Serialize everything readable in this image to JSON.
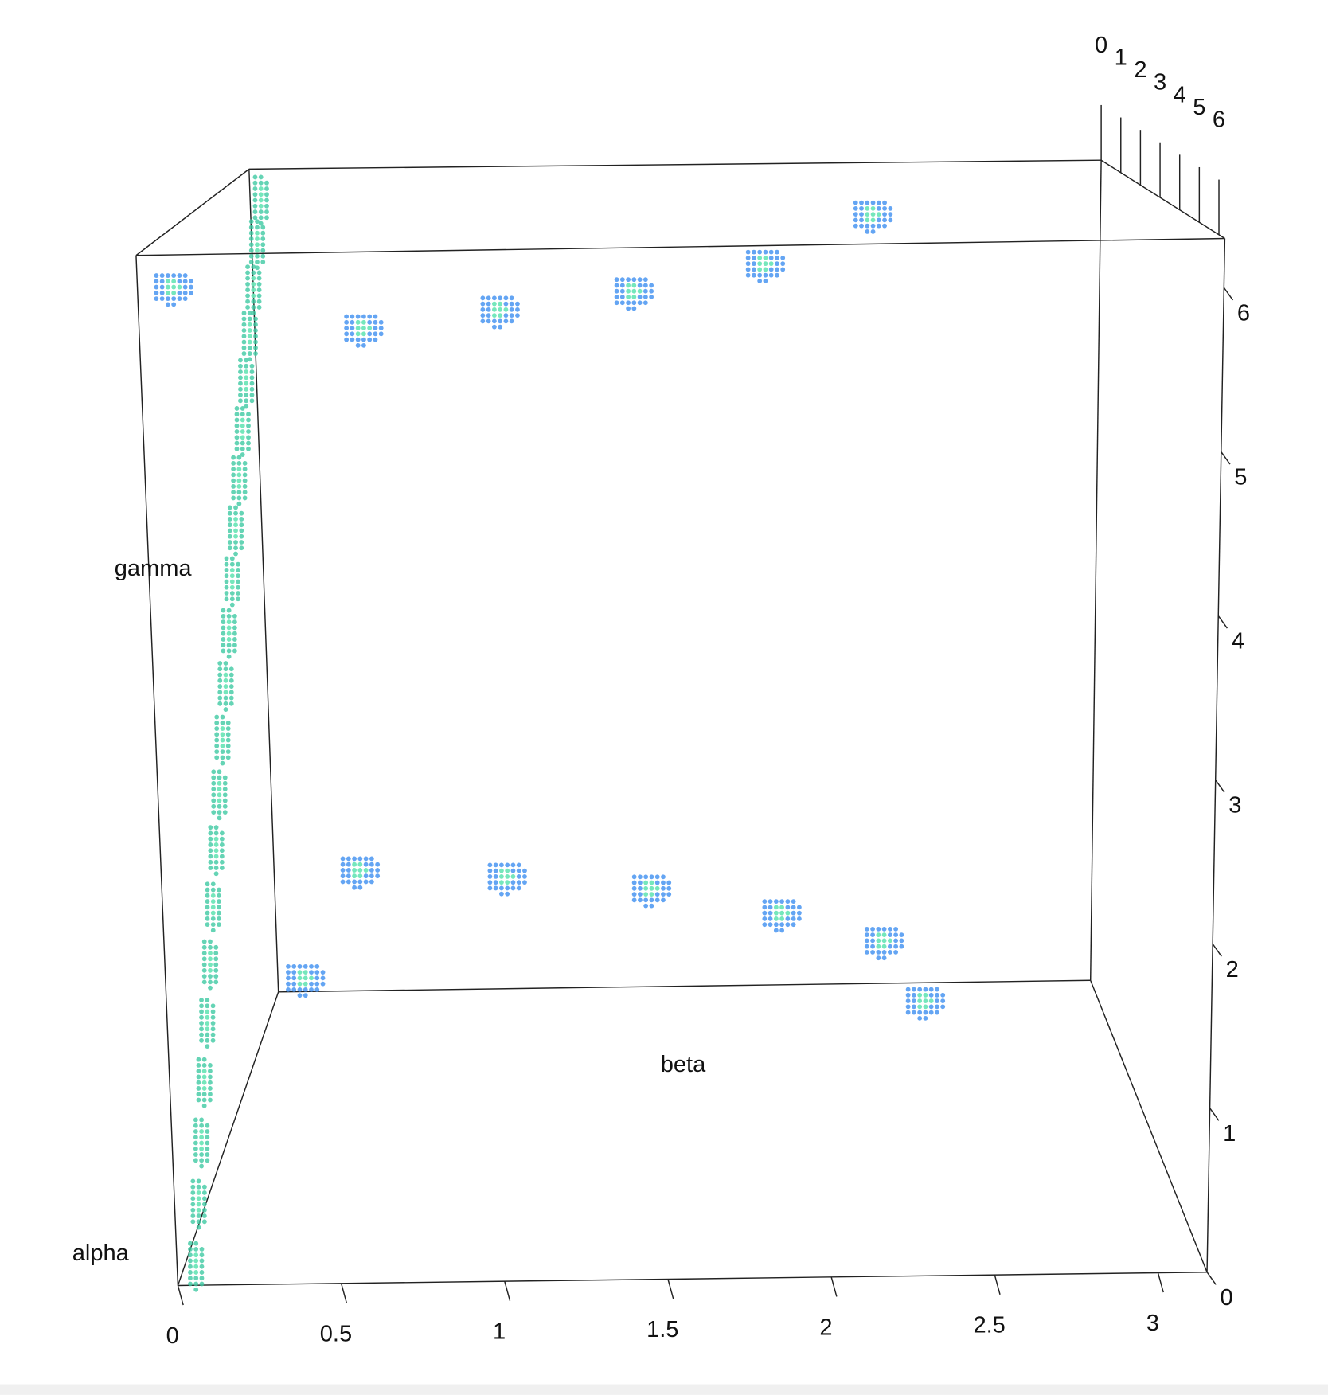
{
  "chart_data": {
    "type": "scatter3d",
    "x_label": "beta",
    "y_label": "alpha",
    "z_label": "gamma",
    "xlim": [
      0,
      3.15
    ],
    "ylim": [
      0,
      6.3
    ],
    "zlim": [
      0,
      6.3
    ],
    "xticks": [
      0,
      0.5,
      1,
      1.5,
      2,
      2.5,
      3
    ],
    "yticks": [
      0,
      1,
      2,
      3,
      4,
      5,
      6
    ],
    "zticks": [
      0,
      1,
      2,
      3,
      4,
      5,
      6
    ],
    "series": [
      {
        "color": "#3fc9a2",
        "x": [
          0.05,
          0.05,
          0.05,
          0.05,
          0.05,
          0.05,
          0.05,
          0.05,
          0.05,
          0.05,
          0.05,
          0.05,
          0.05,
          0.05,
          0.05,
          0.05,
          0.05,
          0.05,
          0.05,
          0.05,
          0.05
        ],
        "y": [
          6.2,
          5.9,
          5.6,
          5.3,
          5.0,
          4.7,
          4.4,
          4.1,
          3.8,
          3.5,
          3.2,
          2.9,
          2.6,
          2.3,
          2.0,
          1.7,
          1.4,
          1.1,
          0.8,
          0.5,
          0.2
        ],
        "z": [
          0.1,
          0.4,
          0.7,
          1.0,
          1.3,
          1.6,
          1.9,
          2.2,
          2.5,
          2.8,
          3.1,
          3.4,
          3.7,
          4.0,
          4.3,
          4.6,
          4.9,
          5.2,
          5.5,
          5.8,
          6.1
        ]
      },
      {
        "color": "#3d8ef0",
        "x": [
          0.4,
          0.91,
          1.41,
          1.9,
          2.3,
          0.4,
          0.93,
          1.45,
          1.92,
          2.29,
          2.44,
          0.1,
          0.1
        ],
        "y": [
          0,
          0,
          0,
          0,
          0,
          1.5,
          1.5,
          1.5,
          1.5,
          1.5,
          1.5,
          0,
          6.3
        ],
        "z": [
          5.07,
          5.2,
          5.33,
          5.53,
          5.9,
          1.37,
          1.31,
          1.21,
          1.02,
          0.81,
          0.37,
          0.1,
          6.1
        ]
      }
    ]
  }
}
